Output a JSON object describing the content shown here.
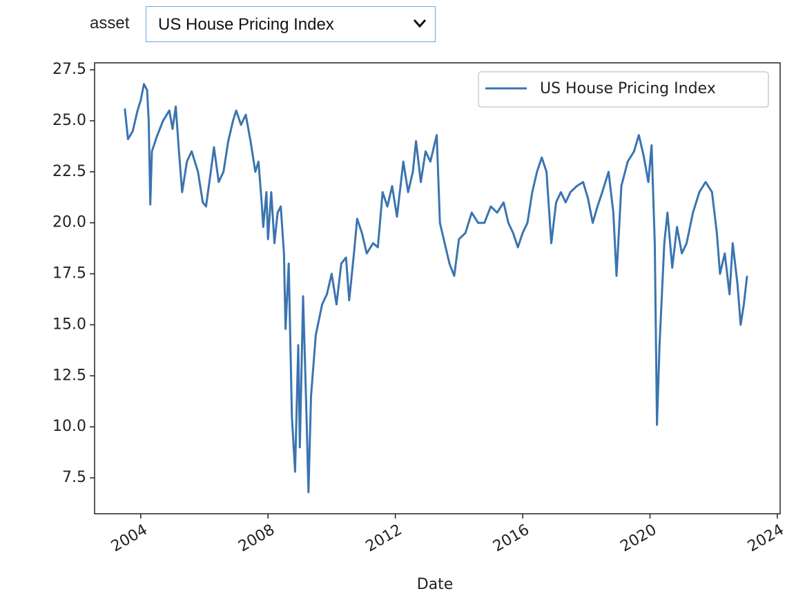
{
  "widget": {
    "label": "asset",
    "selected": "US House Pricing Index"
  },
  "chart_data": {
    "type": "line",
    "xlabel": "Date",
    "xlim": [
      2002.55,
      2024.09
    ],
    "xticks": [
      2004,
      2008,
      2012,
      2016,
      2020,
      2024
    ],
    "ylim": [
      5.74,
      27.84
    ],
    "yticks": [
      {
        "value": 7.5,
        "label": "7.5"
      },
      {
        "value": 10,
        "label": "10.0"
      },
      {
        "value": 12.5,
        "label": "12.5"
      },
      {
        "value": 15,
        "label": "15.0"
      },
      {
        "value": 17.5,
        "label": "17.5"
      },
      {
        "value": 20,
        "label": "20.0"
      },
      {
        "value": 22.5,
        "label": "22.5"
      },
      {
        "value": 25,
        "label": "25.0"
      },
      {
        "value": 27.5,
        "label": "27.5"
      }
    ],
    "grid": false,
    "legend": "upper right",
    "x": [
      2003.5,
      2003.6,
      2003.75,
      2003.9,
      2004.0,
      2004.1,
      2004.2,
      2004.25,
      2004.3,
      2004.35,
      2004.5,
      2004.7,
      2004.9,
      2005.0,
      2005.1,
      2005.2,
      2005.3,
      2005.45,
      2005.6,
      2005.8,
      2005.95,
      2006.05,
      2006.2,
      2006.3,
      2006.45,
      2006.6,
      2006.75,
      2006.9,
      2007.0,
      2007.15,
      2007.3,
      2007.45,
      2007.6,
      2007.7,
      2007.8,
      2007.85,
      2007.95,
      2008.0,
      2008.1,
      2008.2,
      2008.3,
      2008.4,
      2008.5,
      2008.55,
      2008.65,
      2008.75,
      2008.85,
      2008.95,
      2009.0,
      2009.1,
      2009.2,
      2009.27,
      2009.35,
      2009.5,
      2009.7,
      2009.85,
      2010.0,
      2010.15,
      2010.3,
      2010.45,
      2010.55,
      2010.7,
      2010.8,
      2010.95,
      2011.1,
      2011.3,
      2011.45,
      2011.6,
      2011.75,
      2011.9,
      2012.05,
      2012.25,
      2012.4,
      2012.55,
      2012.65,
      2012.8,
      2012.95,
      2013.1,
      2013.3,
      2013.4,
      2013.55,
      2013.7,
      2013.85,
      2014.0,
      2014.2,
      2014.4,
      2014.6,
      2014.8,
      2015.0,
      2015.2,
      2015.4,
      2015.55,
      2015.7,
      2015.85,
      2016.0,
      2016.15,
      2016.3,
      2016.45,
      2016.6,
      2016.75,
      2016.9,
      2017.05,
      2017.2,
      2017.35,
      2017.5,
      2017.7,
      2017.9,
      2018.05,
      2018.2,
      2018.35,
      2018.5,
      2018.7,
      2018.85,
      2018.95,
      2019.1,
      2019.3,
      2019.5,
      2019.65,
      2019.8,
      2019.95,
      2020.05,
      2020.15,
      2020.22,
      2020.3,
      2020.45,
      2020.55,
      2020.7,
      2020.85,
      2021.0,
      2021.15,
      2021.35,
      2021.55,
      2021.75,
      2021.95,
      2022.1,
      2022.2,
      2022.35,
      2022.5,
      2022.6,
      2022.75,
      2022.85,
      2022.95,
      2023.05
    ],
    "series": [
      {
        "name": "US House Pricing Index",
        "color": "#3a74b0",
        "values": [
          25.6,
          24.1,
          24.5,
          25.5,
          26.0,
          26.8,
          26.5,
          25.0,
          20.9,
          23.5,
          24.2,
          25.0,
          25.5,
          24.6,
          25.7,
          23.5,
          21.5,
          23.0,
          23.5,
          22.5,
          21.0,
          20.8,
          22.5,
          23.7,
          22.0,
          22.5,
          24.0,
          25.0,
          25.5,
          24.8,
          25.3,
          24.0,
          22.5,
          23.0,
          21.0,
          19.8,
          21.5,
          19.2,
          21.5,
          19.0,
          20.5,
          20.8,
          18.5,
          14.8,
          18.0,
          10.5,
          7.8,
          14.0,
          9.0,
          16.4,
          11.0,
          6.8,
          11.5,
          14.5,
          16.0,
          16.5,
          17.5,
          16.0,
          18.0,
          18.3,
          16.2,
          18.5,
          20.2,
          19.5,
          18.5,
          19.0,
          18.8,
          21.5,
          20.8,
          21.8,
          20.3,
          23.0,
          21.5,
          22.5,
          24.0,
          22.0,
          23.5,
          23.0,
          24.3,
          20.0,
          19.0,
          18.0,
          17.4,
          19.2,
          19.5,
          20.5,
          20.0,
          20.0,
          20.8,
          20.5,
          21.0,
          20.0,
          19.5,
          18.8,
          19.5,
          20.0,
          21.5,
          22.5,
          23.2,
          22.5,
          19.0,
          21.0,
          21.5,
          21.0,
          21.5,
          21.8,
          22.0,
          21.2,
          20.0,
          20.8,
          21.5,
          22.5,
          20.5,
          17.4,
          21.8,
          23.0,
          23.5,
          24.3,
          23.3,
          22.0,
          23.8,
          19.0,
          10.1,
          14.0,
          19.0,
          20.5,
          17.8,
          19.8,
          18.5,
          19.0,
          20.5,
          21.5,
          22.0,
          21.5,
          19.5,
          17.5,
          18.5,
          16.5,
          19.0,
          17.0,
          15.0,
          16.0,
          17.4
        ]
      }
    ]
  }
}
